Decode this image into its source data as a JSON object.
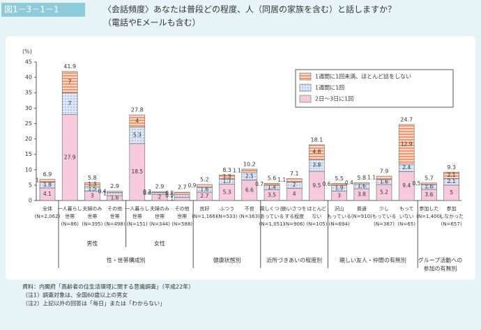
{
  "header": {
    "figure_label": "図1－3－1－1",
    "title_lines": [
      "〈会話頻度〉あなたは普段どの程度、人（同居の家族を含む）と話しますか？",
      "（電話やEメールも含む）"
    ]
  },
  "chart_data": {
    "type": "stacked_bar",
    "ylabel": "(%)",
    "categories": [
      [
        "全体",
        "(N=2,062)"
      ],
      [
        "一人暮らし",
        "世帯",
        "(N=86)"
      ],
      [
        "夫婦のみ",
        "世帯",
        "(N=395)"
      ],
      [
        "その他",
        "世帯",
        "(N=498)"
      ],
      [
        "一人暮らし",
        "世帯",
        "(N=151)"
      ],
      [
        "夫婦のみ",
        "世帯",
        "(N=344)"
      ],
      [
        "その他",
        "世帯",
        "(N=588)"
      ],
      [
        "良好",
        "(N=1,166)"
      ],
      [
        "ふつう",
        "(N=533)"
      ],
      [
        "不良",
        "(N=363)"
      ],
      [
        "親しくつき",
        "あっている",
        "(N=1,051)"
      ],
      [
        "あいさつを",
        "する程度",
        "(N=906)"
      ],
      [
        "ほとんど",
        "ない",
        "(N=105)"
      ],
      [
        "沢山",
        "もっている",
        "(N=694)"
      ],
      [
        "普通",
        "(N=910)"
      ],
      [
        "少し",
        "もっている",
        "(N=367)"
      ],
      [
        "もって",
        "いない",
        "(N=65)"
      ],
      [
        "参加した",
        "(N=1,400)"
      ],
      [
        "参加",
        "しなかった",
        "(N=657)"
      ]
    ],
    "series": [
      {
        "name": "2日～3日に1回",
        "color": "#f6c9dc",
        "values": [
          4.1,
          27.9,
          3.0,
          1.6,
          18.5,
          2.0,
          1.0,
          2.7,
          5.3,
          6.6,
          3.5,
          4.0,
          9.5,
          3.0,
          3.8,
          5.2,
          9.4,
          3.6,
          5.0
        ]
      },
      {
        "name": "1週間に1回",
        "color": "#cfdcf2",
        "values": [
          1.8,
          7.0,
          1.5,
          1.0,
          5.3,
          0.6,
          0.9,
          1.6,
          1.7,
          2.5,
          1.4,
          2.0,
          3.8,
          1.9,
          1.6,
          1.6,
          2.4,
          1.6,
          2.1
        ]
      },
      {
        "name": "1週間に1回未満、ほとんど話をしない",
        "color": "#f5c2a6",
        "values": [
          1.0,
          7.0,
          1.3,
          0.4,
          4.0,
          0.3,
          0.8,
          0.9,
          1.3,
          1.1,
          0.7,
          1.1,
          4.8,
          0.6,
          0.4,
          1.1,
          12.9,
          0.5,
          2.1
        ]
      }
    ],
    "totals": [
      6.9,
      41.9,
      5.8,
      2.9,
      27.8,
      2.9,
      2.7,
      5.2,
      8.3,
      10.2,
      5.6,
      7.1,
      18.1,
      5.5,
      5.8,
      7.9,
      24.7,
      5.7,
      9.3
    ],
    "subgroups": [
      "男性",
      "女性"
    ],
    "groups": [
      "性・世帯構成別",
      "健康状態別",
      "近所づきあいの程度別",
      "親しい友人・仲間の有無別",
      [
        "グループ活動への",
        "参加の有無別"
      ]
    ],
    "ylim": [
      0,
      45
    ],
    "yticks": [
      0,
      5,
      10,
      15,
      20,
      25,
      30,
      35,
      40,
      45
    ]
  },
  "notes": [
    "資料：内閣府「高齢者の住生活環境に関する意識調査」（平成22年）",
    "（注1）調査対象は、全国60歳以上の男女",
    "（注2）上記以外の回答は「毎日」または「わからない」"
  ]
}
